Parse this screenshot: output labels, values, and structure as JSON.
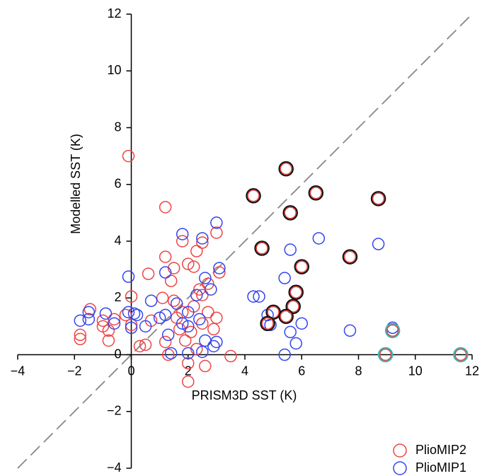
{
  "chart_data": {
    "type": "scatter",
    "xlabel": "PRISM3D SST (K)",
    "ylabel": "Modelled SST (K)",
    "xlim": [
      -4,
      12
    ],
    "ylim": [
      -4,
      12
    ],
    "xticks": [
      {
        "value": -4,
        "label": "−4"
      },
      {
        "value": -2,
        "label": "−2"
      },
      0,
      2,
      4,
      6,
      8,
      10,
      12
    ],
    "yticks": [
      {
        "value": -4,
        "label": "−4"
      },
      {
        "value": -2,
        "label": "−2"
      },
      0,
      2,
      4,
      6,
      8,
      10,
      12
    ],
    "legend": "lower right",
    "series": [
      {
        "name": "PlioMIP2",
        "color": "#ee4444",
        "x": [
          -0.1,
          1.2,
          1.2,
          1.5,
          1.8,
          2.3,
          2.0,
          2.2,
          3.0,
          2.5,
          0.6,
          1.4,
          2.7,
          0.0,
          1.1,
          -1.45,
          -1.8,
          -1.8,
          -0.8,
          -0.8,
          -0.6,
          0.3,
          0.5,
          1.2,
          1.3,
          2.0,
          2.0,
          2.6,
          3.5,
          2.9,
          3.0,
          2.5,
          1.8,
          1.6,
          2.2,
          2.5,
          -0.2,
          0.7,
          2.1,
          1.9,
          2.7,
          3.1,
          2.4,
          1.5,
          -1.0,
          -1.0,
          2.3,
          0.0,
          1.7
        ],
        "values": [
          7.0,
          5.2,
          3.45,
          3.05,
          4.0,
          3.65,
          3.2,
          3.1,
          4.3,
          3.95,
          2.85,
          2.6,
          2.5,
          2.05,
          2.0,
          1.6,
          0.7,
          0.55,
          0.5,
          0.85,
          1.25,
          0.3,
          0.35,
          0.45,
          0.0,
          -0.3,
          -0.95,
          -0.4,
          -0.05,
          0.9,
          1.3,
          1.1,
          1.5,
          1.3,
          1.7,
          2.1,
          1.4,
          1.2,
          0.8,
          0.5,
          1.5,
          2.9,
          2.3,
          1.9,
          1.2,
          1.0,
          0.2,
          1.05,
          0.9
        ]
      },
      {
        "name": "PlioMIP1",
        "color": "#3344ee",
        "x": [
          3.0,
          1.8,
          2.5,
          6.6,
          8.7,
          5.6,
          1.2,
          -0.1,
          5.4,
          3.1,
          2.6,
          2.8,
          4.3,
          4.5,
          2.3,
          0.7,
          1.6,
          -1.5,
          -1.5,
          -1.8,
          -0.9,
          -0.1,
          0.1,
          0.2,
          1.2,
          0.0,
          0.5,
          -0.6,
          1.0,
          2.0,
          2.4,
          2.0,
          1.3,
          3.0,
          2.9,
          2.5,
          1.4,
          2.0,
          5.4,
          5.8,
          5.6,
          6.0,
          7.7,
          9.2,
          4.8,
          4.9,
          1.8,
          2.6
        ],
        "values": [
          4.65,
          4.25,
          4.1,
          4.1,
          3.9,
          3.7,
          2.9,
          2.75,
          2.7,
          3.05,
          2.7,
          2.3,
          2.05,
          2.05,
          2.1,
          1.9,
          1.8,
          1.5,
          1.25,
          1.2,
          1.45,
          1.5,
          1.45,
          1.4,
          1.4,
          0.95,
          1.0,
          1.1,
          1.3,
          1.5,
          1.25,
          1.0,
          0.7,
          0.45,
          0.3,
          0.1,
          0.05,
          0.05,
          0.0,
          0.4,
          0.8,
          1.1,
          0.85,
          0.95,
          1.4,
          1.05,
          1.1,
          0.5
        ]
      },
      {
        "color": "#ee4444",
        "edgecolor": "#111111",
        "x": [
          5.45,
          4.3,
          6.5,
          5.6,
          8.7,
          4.6,
          7.7,
          6.0,
          5.8,
          5.7,
          5.0,
          5.45,
          4.8
        ],
        "values": [
          6.55,
          5.6,
          5.7,
          5.0,
          5.5,
          3.75,
          3.45,
          3.1,
          2.2,
          1.7,
          1.5,
          1.35,
          1.1
        ]
      },
      {
        "color": "#ee4444",
        "edgecolor": "#33bbbb",
        "x": [
          9.2,
          8.95,
          11.6
        ],
        "values": [
          0.85,
          0.0,
          0.0
        ]
      }
    ]
  }
}
